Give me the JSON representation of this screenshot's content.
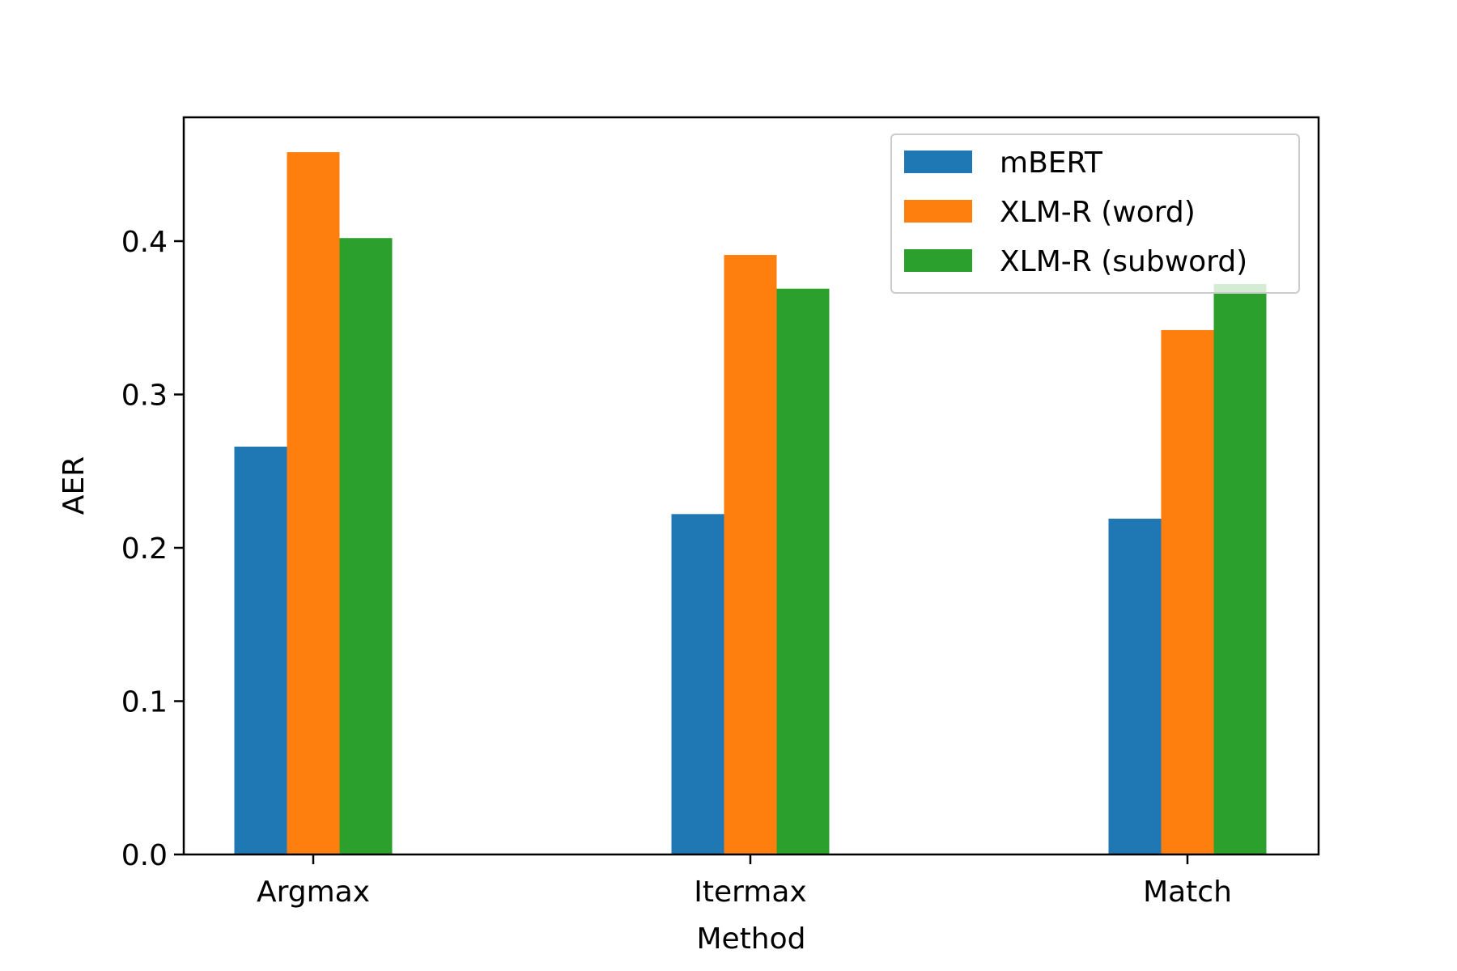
{
  "chart_data": {
    "type": "bar",
    "title": "",
    "xlabel": "Method",
    "ylabel": "AER",
    "categories": [
      "Argmax",
      "Itermax",
      "Match"
    ],
    "series": [
      {
        "name": "mBERT",
        "color": "#1f77b4",
        "values": [
          0.266,
          0.222,
          0.219
        ]
      },
      {
        "name": "XLM-R (word)",
        "color": "#ff7f0e",
        "values": [
          0.458,
          0.391,
          0.342
        ]
      },
      {
        "name": "XLM-R (subword)",
        "color": "#2ca02c",
        "values": [
          0.402,
          0.369,
          0.372
        ]
      }
    ],
    "ylim": [
      0,
      0.48
    ],
    "yticks": [
      0.0,
      0.1,
      0.2,
      0.3,
      0.4
    ],
    "ytick_labels": [
      "0.0",
      "0.1",
      "0.2",
      "0.3",
      "0.4"
    ],
    "grid": false,
    "legend_position": "top-right"
  }
}
